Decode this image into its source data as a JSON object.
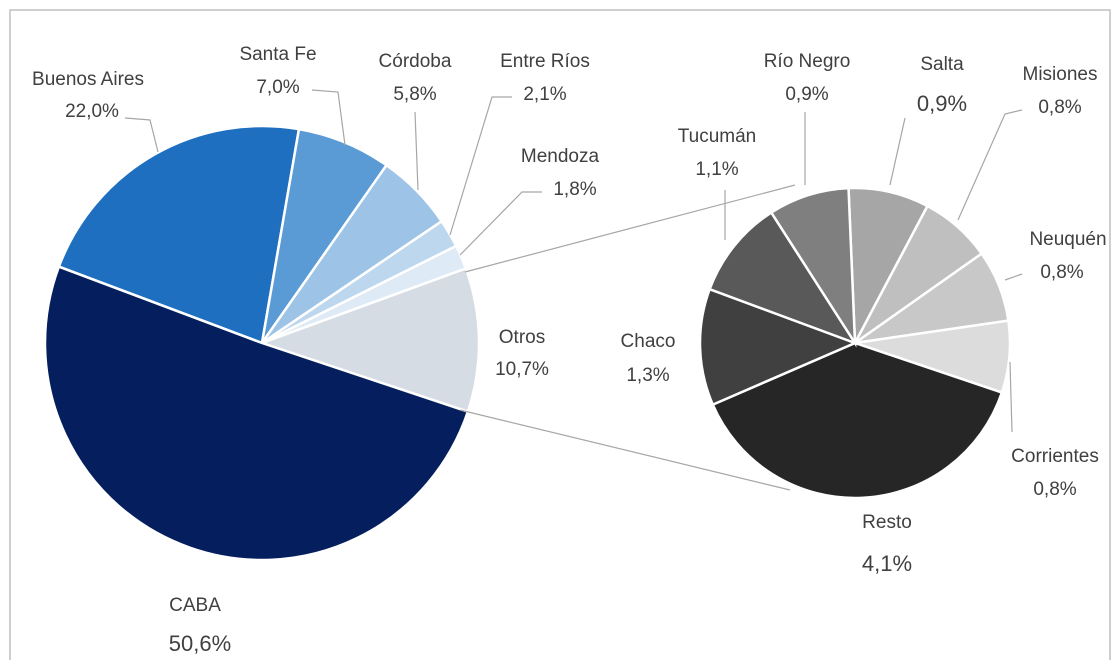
{
  "chart_data": [
    {
      "type": "pie",
      "categories": [
        "Buenos Aires",
        "Santa Fe",
        "Córdoba",
        "Entre Ríos",
        "Mendoza",
        "Otros",
        "CABA"
      ],
      "values": [
        22.0,
        7.0,
        5.8,
        2.1,
        1.8,
        10.7,
        50.6
      ],
      "value_labels": [
        "22,0%",
        "7,0%",
        "5,8%",
        "2,1%",
        "1,8%",
        "10,7%",
        "50,6%"
      ],
      "colors": [
        "#1f6fc1",
        "#5b9bd5",
        "#9dc3e6",
        "#bdd7ee",
        "#deebf7",
        "#d6dce4",
        "#041e5e"
      ]
    },
    {
      "type": "pie",
      "categories": [
        "Salta",
        "Misiones",
        "Neuquén",
        "Corrientes",
        "Resto",
        "Chaco",
        "Tucumán",
        "Río Negro"
      ],
      "values": [
        0.9,
        0.8,
        0.8,
        0.8,
        4.1,
        1.3,
        1.1,
        0.9
      ],
      "value_labels": [
        "0,9%",
        "0,8%",
        "0,8%",
        "0,8%",
        "4,1%",
        "1,3%",
        "1,1%",
        "0,9%"
      ],
      "colors": [
        "#a6a6a6",
        "#bfbfbf",
        "#c8c8c8",
        "#dcdcdc",
        "#262626",
        "#404040",
        "#595959",
        "#7f7f7f"
      ]
    }
  ]
}
